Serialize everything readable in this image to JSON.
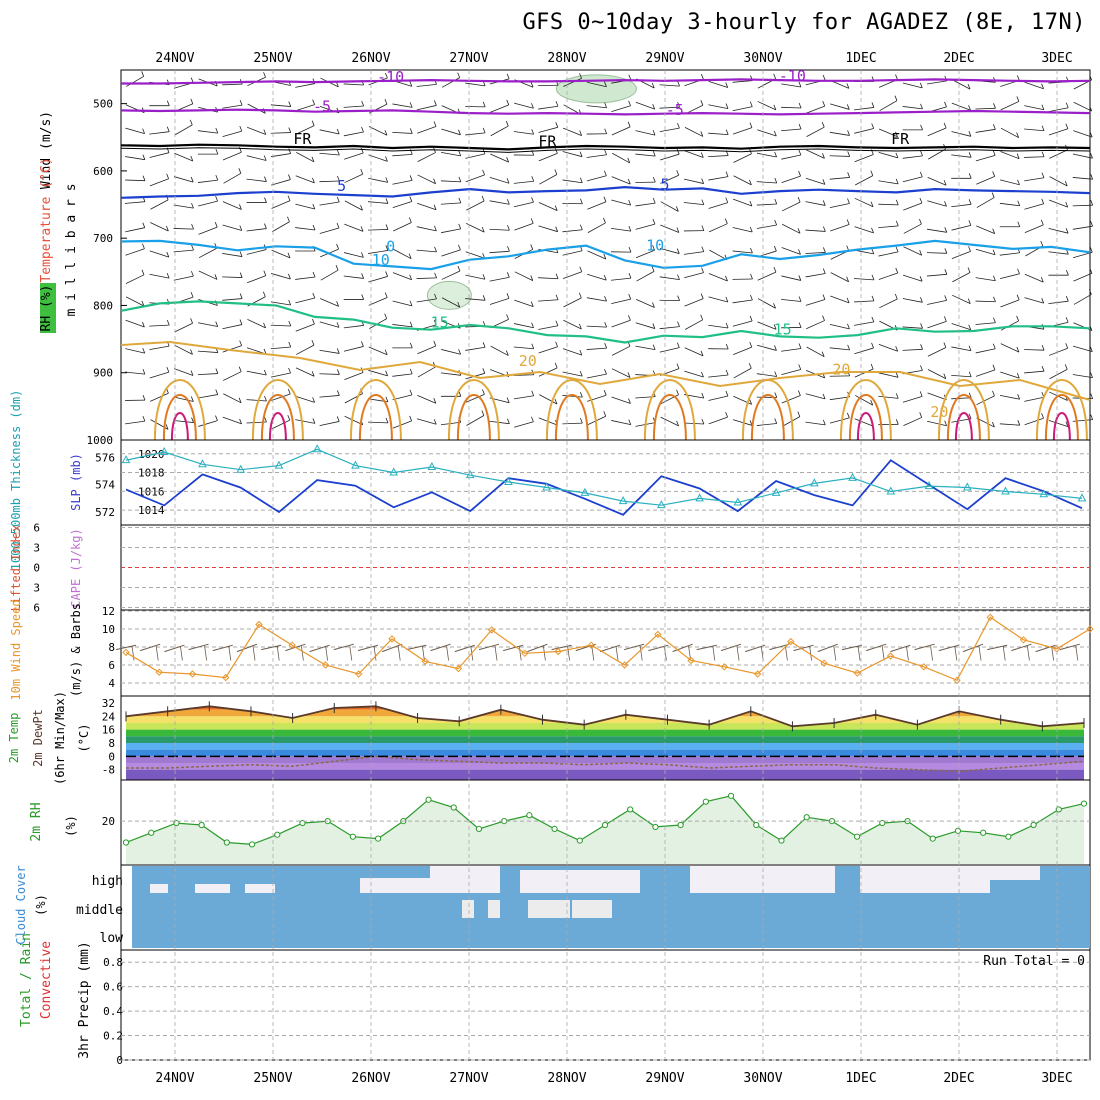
{
  "title": "GFS 0~10day 3-hourly for AGADEZ (8E, 17N)",
  "dates": [
    "24NOV",
    "25NOV",
    "26NOV",
    "27NOV",
    "28NOV",
    "29NOV",
    "30NOV",
    "1DEC",
    "2DEC",
    "3DEC"
  ],
  "colors": {
    "purple": "#9a1fc8",
    "blue": "#1b3fcf",
    "cyan": "#1aa0e8",
    "teal": "#1fbf85",
    "gold": "#e0a83a",
    "orange": "#e07a20",
    "magenta": "#cc1a7a",
    "grid": "#aaaaaa",
    "cloud": "#6ba9d6",
    "rhfill": "#e3f1e3",
    "rhline": "#2a9a2a"
  },
  "chart_data": [
    {
      "type": "line",
      "name": "wind-temp-rh-profile",
      "ylabels": [
        "Wind (m/s)",
        "Temperature (°C)",
        "RH (%)",
        "m i l l i b a r s"
      ],
      "yticks": [
        500,
        600,
        700,
        800,
        900,
        1000
      ],
      "ylim": [
        450,
        1000
      ],
      "contour_labels": [
        {
          "text": "-10",
          "day": 2.2,
          "p": 468
        },
        {
          "text": "-10",
          "day": 6.3,
          "p": 466
        },
        {
          "text": "-5",
          "day": 1.5,
          "p": 512
        },
        {
          "text": "-5",
          "day": 5.1,
          "p": 517
        },
        {
          "text": "FR",
          "day": 1.3,
          "p": 560
        },
        {
          "text": "FR",
          "day": 3.8,
          "p": 564
        },
        {
          "text": "FR",
          "day": 7.4,
          "p": 560
        },
        {
          "text": "5",
          "day": 1.7,
          "p": 630
        },
        {
          "text": "5",
          "day": 5.0,
          "p": 628
        },
        {
          "text": "0",
          "day": 2.2,
          "p": 720
        },
        {
          "text": "10",
          "day": 2.1,
          "p": 740
        },
        {
          "text": "10",
          "day": 4.9,
          "p": 718
        },
        {
          "text": "15",
          "day": 2.7,
          "p": 833
        },
        {
          "text": "15",
          "day": 6.2,
          "p": 843
        },
        {
          "text": "20",
          "day": 3.6,
          "p": 890
        },
        {
          "text": "20",
          "day": 6.8,
          "p": 903
        },
        {
          "text": "20",
          "day": 7.8,
          "p": 966
        }
      ],
      "series": [
        {
          "values": [
            470,
            470,
            469,
            468,
            467,
            468,
            467,
            466,
            465,
            466,
            467,
            467,
            466,
            465,
            466,
            465,
            464,
            465,
            466,
            466,
            465,
            464,
            465,
            466,
            467,
            466
          ]
        },
        {
          "values": [
            510,
            511,
            510,
            509,
            510,
            512,
            511,
            510,
            512,
            514,
            515,
            514,
            515,
            516,
            515,
            514,
            515,
            516,
            515,
            514,
            513,
            512,
            511,
            512,
            513,
            514
          ]
        },
        {
          "values": [
            562,
            563,
            561,
            562,
            564,
            565,
            563,
            566,
            564,
            566,
            568,
            565,
            563,
            564,
            566,
            565,
            567,
            564,
            563,
            565,
            566,
            565,
            564,
            566,
            565,
            566
          ]
        },
        {
          "values": [
            640,
            638,
            637,
            633,
            631,
            634,
            636,
            638,
            632,
            627,
            632,
            630,
            629,
            624,
            628,
            626,
            634,
            630,
            628,
            630,
            632,
            627,
            629,
            630,
            631,
            633
          ]
        },
        {
          "values": [
            705,
            704,
            710,
            718,
            712,
            714,
            738,
            742,
            746,
            732,
            727,
            717,
            711,
            733,
            744,
            741,
            724,
            731,
            725,
            717,
            711,
            704,
            710,
            716,
            713,
            721
          ]
        },
        {
          "values": [
            808,
            797,
            794,
            797,
            800,
            817,
            821,
            833,
            836,
            829,
            834,
            844,
            846,
            855,
            845,
            847,
            838,
            846,
            848,
            844,
            834,
            839,
            838,
            831,
            831,
            834
          ]
        }
      ]
    },
    {
      "type": "line",
      "name": "thickness-slp",
      "ylabels": [
        "1000~500mb Thickness (dm)",
        "SLP (mb)"
      ],
      "left_ticks": [
        576,
        574,
        572
      ],
      "right_ticks": [
        1020,
        1018,
        1016,
        1014
      ],
      "series": [
        {
          "name": "SLP",
          "values": [
            1016.2,
            1014.5,
            1017.8,
            1016.4,
            1013.8,
            1017.2,
            1016.6,
            1014.3,
            1015.9,
            1013.9,
            1017.4,
            1016.8,
            1015.2,
            1013.5,
            1017.6,
            1016.3,
            1013.9,
            1017.1,
            1015.6,
            1014.5,
            1019.3,
            1016.7,
            1014.1,
            1017.4,
            1016.0,
            1014.2
          ]
        },
        {
          "name": "Thickness",
          "values": [
            575.8,
            576.4,
            575.5,
            575.1,
            575.4,
            576.6,
            575.4,
            574.9,
            575.3,
            574.7,
            574.2,
            573.8,
            573.4,
            572.8,
            572.5,
            573.0,
            572.7,
            573.4,
            574.1,
            574.5,
            573.5,
            573.9,
            573.8,
            573.5,
            573.3,
            573.0
          ]
        }
      ]
    },
    {
      "type": "line",
      "name": "lifted-index-cape",
      "ylabels": [
        "Lifted Index",
        "CAPE (J/kg)"
      ],
      "yticks": [
        -6,
        -3,
        0,
        3,
        6
      ],
      "series": []
    },
    {
      "type": "line",
      "name": "wind-speed",
      "ylabels": [
        "10m Wind Speed",
        "(m/s) & Barbs"
      ],
      "yticks": [
        4,
        6,
        8,
        10,
        12
      ],
      "ylim": [
        3,
        12
      ],
      "series": [
        {
          "name": "speed",
          "values": [
            7.4,
            5.2,
            5.0,
            4.6,
            10.5,
            8.2,
            6.0,
            5.0,
            8.9,
            6.4,
            5.6,
            9.9,
            7.3,
            7.5,
            8.2,
            6.0,
            9.4,
            6.5,
            5.8,
            5.0,
            8.6,
            6.2,
            5.1,
            7.0,
            5.8,
            4.3,
            11.3,
            8.8,
            7.8,
            10.0
          ]
        }
      ]
    },
    {
      "type": "area",
      "name": "temperature-dewpoint",
      "ylabels": [
        "2m Temp",
        "2m DewPt",
        "(6hr Min/Max)",
        "(°C)"
      ],
      "yticks": [
        32,
        24,
        16,
        8,
        0,
        -8
      ],
      "ylim": [
        -14,
        34
      ],
      "series": [
        {
          "name": "temp",
          "values": [
            24,
            27,
            30,
            27,
            23,
            29,
            30,
            23,
            21,
            28,
            22,
            19,
            25,
            22,
            19,
            27,
            18,
            20,
            25,
            19,
            27,
            22,
            18,
            20
          ]
        },
        {
          "name": "dewpoint",
          "values": [
            -7,
            -7,
            -6,
            -5,
            -6,
            -3,
            0,
            -2,
            -3,
            -4,
            -4,
            -5,
            -4,
            -5,
            -7,
            -6,
            -5,
            -5,
            -7,
            -8,
            -9,
            -7,
            -5,
            -3
          ]
        }
      ]
    },
    {
      "type": "area",
      "name": "relative-humidity",
      "ylabels": [
        "2m RH",
        "(%)"
      ],
      "yticks": [
        20
      ],
      "ylim": [
        0,
        40
      ],
      "series": [
        {
          "name": "rh",
          "values": [
            9,
            14,
            19,
            18,
            9,
            8,
            13,
            19,
            20,
            12,
            11,
            20,
            31,
            27,
            16,
            20,
            23,
            16,
            10,
            18,
            26,
            17,
            18,
            30,
            33,
            18,
            10,
            22,
            20,
            12,
            19,
            20,
            11,
            15,
            14,
            12,
            18,
            26,
            29
          ]
        }
      ]
    },
    {
      "type": "heatmap",
      "name": "cloud-cover",
      "ylabels": [
        "Cloud Cover",
        "(%)"
      ],
      "rows": [
        "high",
        "middle",
        "low"
      ]
    },
    {
      "type": "bar",
      "name": "precipitation",
      "ylabels": [
        "Total / Rain",
        "Convective",
        "3hr Precip (mm)"
      ],
      "yticks": [
        0,
        0.2,
        0.4,
        0.6,
        0.8
      ],
      "ylim": [
        0,
        0.9
      ],
      "annotation": "Run Total = 0",
      "values": []
    }
  ]
}
